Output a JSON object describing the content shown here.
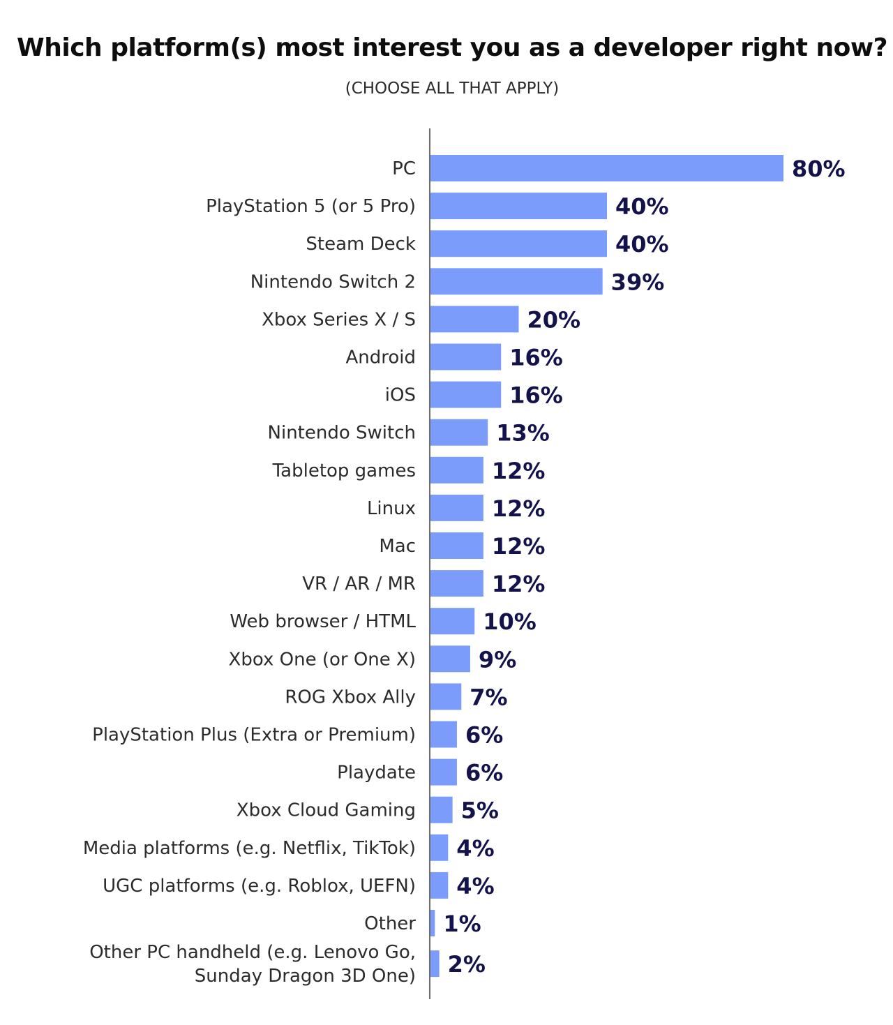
{
  "chart_data": {
    "type": "bar",
    "orientation": "horizontal",
    "title": "Which platform(s) most interest you as a developer right now?",
    "subtitle": "(CHOOSE ALL THAT APPLY)",
    "bar_color": "#7c9cfc",
    "value_color": "#14124a",
    "xlim": [
      0,
      100
    ],
    "grid": false,
    "categories": [
      "PC",
      "PlayStation 5 (or 5 Pro)",
      "Steam Deck",
      "Nintendo Switch 2",
      "Xbox Series X / S",
      "Android",
      "iOS",
      "Nintendo Switch",
      "Tabletop games",
      "Linux",
      "Mac",
      "VR / AR / MR",
      "Web browser / HTML",
      "Xbox One (or One X)",
      "ROG Xbox Ally",
      "PlayStation Plus (Extra or Premium)",
      "Playdate",
      "Xbox Cloud Gaming",
      "Media platforms (e.g. Netflix, TikTok)",
      "UGC platforms (e.g. Roblox, UEFN)",
      "Other",
      "Other PC handheld (e.g. Lenovo Go, Sunday Dragon 3D One)"
    ],
    "values": [
      80,
      40,
      40,
      39,
      20,
      16,
      16,
      13,
      12,
      12,
      12,
      12,
      10,
      9,
      7,
      6,
      6,
      5,
      4,
      4,
      1,
      2
    ],
    "value_labels": [
      "80%",
      "40%",
      "40%",
      "39%",
      "20%",
      "16%",
      "16%",
      "13%",
      "12%",
      "12%",
      "12%",
      "12%",
      "10%",
      "9%",
      "7%",
      "6%",
      "6%",
      "5%",
      "4%",
      "4%",
      "1%",
      "2%"
    ]
  }
}
